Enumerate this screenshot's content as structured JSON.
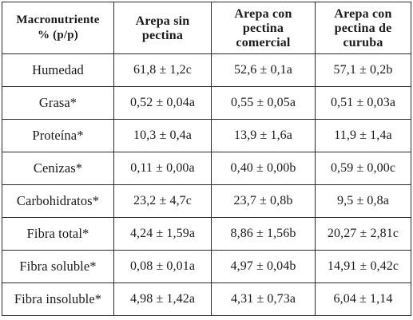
{
  "header": {
    "col0": [
      "Macronutriente",
      "% (p/p)"
    ],
    "col1": [
      "Arepa sin",
      "pectina"
    ],
    "col2": [
      "Arepa con",
      "pectina",
      "comercial"
    ],
    "col3": [
      "Arepa con",
      "pectina de",
      "curuba"
    ]
  },
  "rows": [
    {
      "label": "Humedad",
      "sin": "61,8 ± 1,2c",
      "comercial": "52,6 ± 0,1a",
      "curuba": "57,1 ± 0,2b"
    },
    {
      "label": "Grasa*",
      "sin": "0,52 ± 0,04a",
      "comercial": "0,55 ± 0,05a",
      "curuba": "0,51 ± 0,03a"
    },
    {
      "label": "Proteína*",
      "sin": "10,3 ± 0,4a",
      "comercial": "13,9 ± 1,6a",
      "curuba": "11,9 ± 1,4a"
    },
    {
      "label": "Cenizas*",
      "sin": "0,11 ± 0,00a",
      "comercial": "0,40 ± 0,00b",
      "curuba": "0,59 ± 0,00c"
    },
    {
      "label": "Carbohidratos*",
      "sin": "23,2 ± 4,7c",
      "comercial": "23,7 ± 0,8b",
      "curuba": "9,5 ± 0,8a"
    },
    {
      "label": "Fibra total*",
      "sin": "4,24 ± 1,59a",
      "comercial": "8,86 ± 1,56b",
      "curuba": "20,27 ± 2,81c"
    },
    {
      "label": "Fibra soluble*",
      "sin": "0,08 ± 0,01a",
      "comercial": "4,97 ± 0,04b",
      "curuba": "14,91 ± 0,42c"
    },
    {
      "label": "Fibra insoluble*",
      "sin": "4,98 ± 1,42a",
      "comercial": "4,31 ± 0,73a",
      "curuba": "6,04 ± 1,14"
    }
  ]
}
